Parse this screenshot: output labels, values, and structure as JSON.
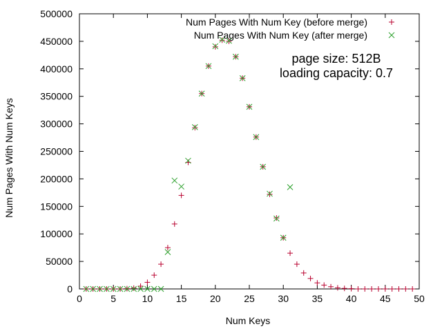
{
  "chart_data": {
    "type": "scatter",
    "title": "",
    "xlabel": "Num Keys",
    "ylabel": "Num Pages With Num Keys",
    "xlim": [
      0,
      50
    ],
    "ylim": [
      0,
      500000
    ],
    "x_ticks": [
      0,
      5,
      10,
      15,
      20,
      25,
      30,
      35,
      40,
      45,
      50
    ],
    "y_ticks": [
      0,
      50000,
      100000,
      150000,
      200000,
      250000,
      300000,
      350000,
      400000,
      450000,
      500000
    ],
    "grid": false,
    "legend_position": "top-right",
    "annotations": [
      "page size: 512B",
      "loading capacity: 0.7"
    ],
    "series": [
      {
        "name": "Num Pages With Num Key (before merge)",
        "marker": "plus",
        "color": "#b8002e",
        "x": [
          1,
          2,
          3,
          4,
          5,
          6,
          7,
          8,
          9,
          10,
          11,
          12,
          13,
          14,
          15,
          16,
          17,
          18,
          19,
          20,
          21,
          22,
          23,
          24,
          25,
          26,
          27,
          28,
          29,
          30,
          31,
          32,
          33,
          34,
          35,
          36,
          37,
          38,
          39,
          40,
          41,
          42,
          43,
          44,
          45,
          46,
          47,
          48,
          49
        ],
        "y": [
          0,
          0,
          0,
          0,
          0,
          0,
          500,
          1500,
          5000,
          12000,
          25000,
          45000,
          75000,
          118000,
          170000,
          230000,
          293000,
          355000,
          405000,
          440000,
          452000,
          450000,
          422000,
          383000,
          331000,
          276000,
          222000,
          172000,
          129000,
          93000,
          65000,
          45000,
          29000,
          19000,
          11000,
          7000,
          4000,
          2000,
          1000,
          500,
          0,
          0,
          0,
          0,
          0,
          0,
          0,
          0,
          0
        ]
      },
      {
        "name": "Num Pages With Num Key (after merge)",
        "marker": "cross",
        "color": "#2ca02c",
        "x": [
          1,
          2,
          3,
          4,
          5,
          6,
          7,
          8,
          9,
          10,
          11,
          12,
          13,
          14,
          15,
          16,
          17,
          18,
          19,
          20,
          21,
          22,
          23,
          24,
          25,
          26,
          27,
          28,
          29,
          30,
          31
        ],
        "y": [
          0,
          0,
          0,
          0,
          0,
          0,
          0,
          0,
          0,
          0,
          0,
          0,
          67000,
          197000,
          186000,
          233000,
          294000,
          355000,
          405000,
          441000,
          453000,
          451000,
          422000,
          383000,
          331000,
          276000,
          222000,
          173000,
          128000,
          93000,
          185000
        ]
      }
    ]
  }
}
